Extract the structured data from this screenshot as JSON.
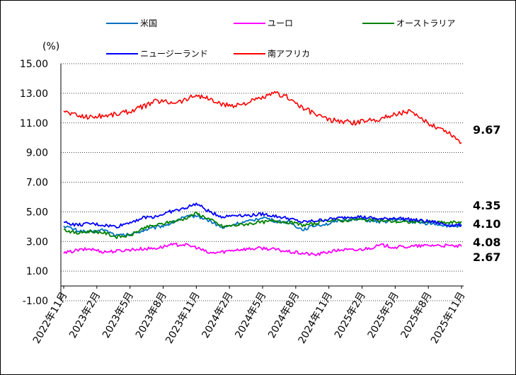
{
  "chart_data": {
    "type": "line",
    "title": "",
    "ylabel": "(%)",
    "xlabel": "",
    "ylim": [
      -1.0,
      15.0
    ],
    "yticks": [
      "15.00",
      "13.00",
      "11.00",
      "9.00",
      "7.00",
      "5.00",
      "3.00",
      "1.00",
      "-1.00"
    ],
    "ytick_values": [
      15,
      13,
      11,
      9,
      7,
      5,
      3,
      1,
      -1
    ],
    "x_tick_labels": [
      "2022年11月",
      "2023年2月",
      "2023年5月",
      "2023年8月",
      "2023年11月",
      "2024年2月",
      "2024年5月",
      "2024年8月",
      "2024年11月",
      "2025年2月",
      "2025年5月",
      "2025年8月",
      "2025年11月"
    ],
    "grid": "horizontal dotted",
    "legend_position": "top",
    "series": [
      {
        "name": "米国",
        "color": "#0070c0",
        "values": [
          4.05,
          3.75,
          3.6,
          3.8,
          3.4,
          3.45,
          3.75,
          3.95,
          4.2,
          4.6,
          4.75,
          4.4,
          3.9,
          4.2,
          4.35,
          4.65,
          4.35,
          4.3,
          3.8,
          4.1,
          4.2,
          4.4,
          4.55,
          4.4,
          4.3,
          4.5,
          4.35,
          4.25,
          4.2,
          4.05,
          4.08
        ]
      },
      {
        "name": "ユーロ",
        "color": "#ff00ff",
        "values": [
          2.2,
          2.4,
          2.5,
          2.3,
          2.35,
          2.45,
          2.5,
          2.55,
          2.75,
          2.8,
          2.6,
          2.2,
          2.3,
          2.45,
          2.5,
          2.55,
          2.45,
          2.3,
          2.2,
          2.1,
          2.3,
          2.45,
          2.4,
          2.55,
          2.75,
          2.6,
          2.65,
          2.7,
          2.75,
          2.7,
          2.67
        ]
      },
      {
        "name": "オーストラリア",
        "color": "#008000",
        "values": [
          3.8,
          3.55,
          3.7,
          3.6,
          3.3,
          3.4,
          3.9,
          4.1,
          4.3,
          4.5,
          4.9,
          4.5,
          4.0,
          4.1,
          4.2,
          4.3,
          4.4,
          4.3,
          4.1,
          4.2,
          4.45,
          4.4,
          4.5,
          4.45,
          4.4,
          4.35,
          4.3,
          4.35,
          4.3,
          4.25,
          4.35
        ]
      },
      {
        "name": "ニュージーランド",
        "color": "#0000ff",
        "values": [
          4.3,
          4.1,
          4.2,
          4.1,
          4.0,
          4.3,
          4.6,
          4.7,
          5.0,
          5.2,
          5.55,
          5.0,
          4.65,
          4.8,
          4.75,
          4.85,
          4.7,
          4.55,
          4.3,
          4.4,
          4.5,
          4.6,
          4.7,
          4.6,
          4.5,
          4.6,
          4.5,
          4.4,
          4.3,
          4.1,
          4.1
        ]
      },
      {
        "name": "南アフリカ",
        "color": "#ff0000",
        "values": [
          11.8,
          11.5,
          11.4,
          11.5,
          11.6,
          11.8,
          12.1,
          12.5,
          12.4,
          12.5,
          12.9,
          12.6,
          12.2,
          12.2,
          12.4,
          12.7,
          13.0,
          12.7,
          12.0,
          11.6,
          11.2,
          11.1,
          11.0,
          11.2,
          11.3,
          11.6,
          11.8,
          11.2,
          10.8,
          10.4,
          9.67
        ]
      }
    ],
    "end_labels": [
      {
        "text": "9.67",
        "value": 9.67,
        "series": "南アフリカ"
      },
      {
        "text": "4.35",
        "value": 4.35,
        "series": "オーストラリア"
      },
      {
        "text": "4.10",
        "value": 4.1,
        "series": "ニュージーランド"
      },
      {
        "text": "4.08",
        "value": 4.08,
        "series": "米国"
      },
      {
        "text": "2.67",
        "value": 2.67,
        "series": "ユーロ"
      }
    ]
  }
}
